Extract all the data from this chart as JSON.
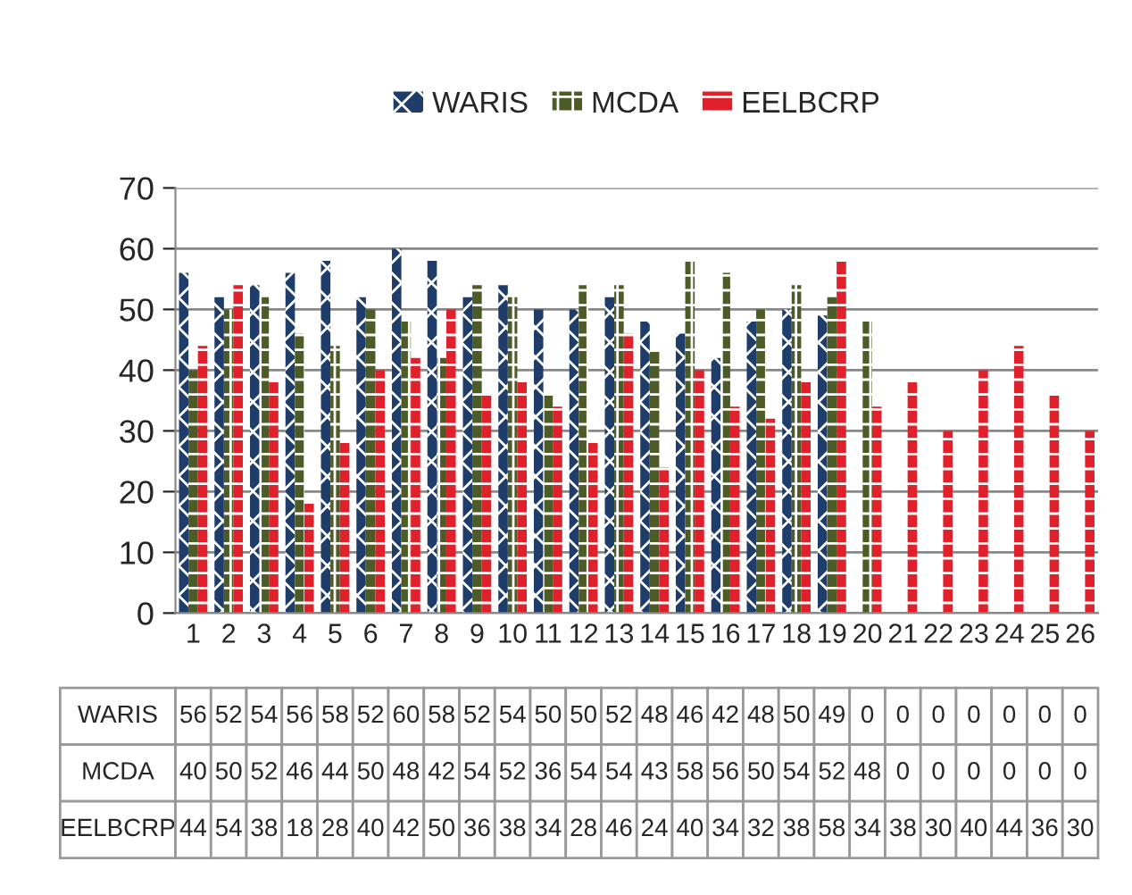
{
  "chart_data": {
    "type": "bar",
    "categories": [
      "1",
      "2",
      "3",
      "4",
      "5",
      "6",
      "7",
      "8",
      "9",
      "10",
      "11",
      "12",
      "13",
      "14",
      "15",
      "16",
      "17",
      "18",
      "19",
      "20",
      "21",
      "22",
      "23",
      "24",
      "25",
      "26"
    ],
    "series": [
      {
        "name": "WARIS",
        "color": "#1f3d6b",
        "values": [
          56,
          52,
          54,
          56,
          58,
          52,
          60,
          58,
          52,
          54,
          50,
          50,
          52,
          48,
          46,
          42,
          48,
          50,
          49,
          0,
          0,
          0,
          0,
          0,
          0,
          0
        ]
      },
      {
        "name": "MCDA",
        "color": "#4d5c26",
        "values": [
          40,
          50,
          52,
          46,
          44,
          50,
          48,
          42,
          54,
          52,
          36,
          54,
          54,
          43,
          58,
          56,
          50,
          54,
          52,
          48,
          0,
          0,
          0,
          0,
          0,
          0
        ]
      },
      {
        "name": "EELBCRP",
        "color": "#e0202a",
        "values": [
          44,
          54,
          38,
          18,
          28,
          40,
          42,
          50,
          36,
          38,
          34,
          28,
          46,
          24,
          40,
          34,
          32,
          38,
          58,
          34,
          38,
          30,
          40,
          44,
          36,
          30
        ]
      }
    ],
    "ylim": [
      0,
      70
    ],
    "yticks": [
      0,
      10,
      20,
      30,
      40,
      50,
      60,
      70
    ],
    "grid": "y",
    "legend": "top",
    "data_labels": true
  }
}
